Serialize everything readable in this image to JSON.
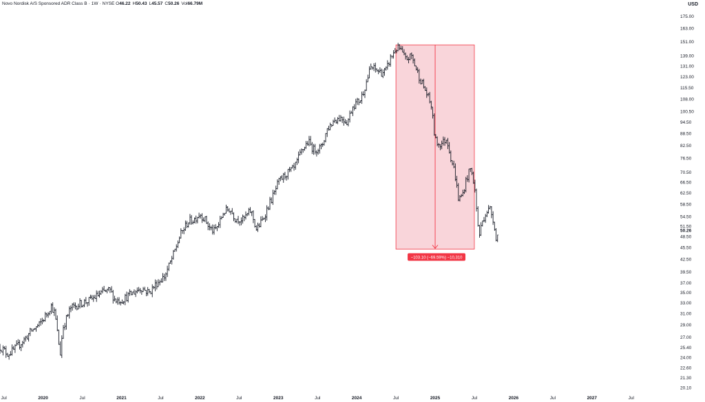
{
  "header": {
    "title": "Novo Nordisk A/S Sponsored ADR Class B",
    "interval": "1W",
    "exchange": "NYSE",
    "open_label": "O",
    "open": "46.22",
    "high_label": "H",
    "high": "50.43",
    "low_label": "L",
    "low": "45.57",
    "close_label": "C",
    "close": "50.26",
    "vol_label": "Vol",
    "vol": "66.79M"
  },
  "currency": "USD",
  "colors": {
    "candle": "#131722",
    "measure_fill": "#f7c7cd",
    "measure_stroke": "#f23645",
    "measure_label_bg": "#f23645",
    "measure_label_text": "#ffffff",
    "background": "#ffffff"
  },
  "measure": {
    "label": "−103.10 (−69.59%) −10,310",
    "from_price": 148.2,
    "to_price": 45.1,
    "from_date": 2024.5,
    "to_date": 2025.5,
    "arrow_date": 2025.0
  },
  "chart_data": {
    "type": "candlestick",
    "price_scale": "log",
    "ylim": [
      19.5,
      182
    ],
    "xlim": [
      2019.45,
      2027.95
    ],
    "y_ticks": [
      "175.00",
      "163.00",
      "151.00",
      "139.00",
      "131.00",
      "123.00",
      "115.50",
      "108.00",
      "100.50",
      "94.50",
      "88.50",
      "82.50",
      "76.50",
      "70.50",
      "66.50",
      "62.50",
      "58.50",
      "54.50",
      "51.50",
      "48.50",
      "45.50",
      "42.50",
      "39.50",
      "37.00",
      "35.00",
      "33.00",
      "31.00",
      "29.00",
      "27.00",
      "25.40",
      "24.00",
      "22.60",
      "21.30",
      "20.10"
    ],
    "last_price_label": "50.26",
    "last_price": 50.26,
    "x_ticks": [
      {
        "label": "Jul",
        "t": 2019.5,
        "year": false
      },
      {
        "label": "2020",
        "t": 2020.0,
        "year": true
      },
      {
        "label": "Jul",
        "t": 2020.5,
        "year": false
      },
      {
        "label": "2021",
        "t": 2021.0,
        "year": true
      },
      {
        "label": "Jul",
        "t": 2021.5,
        "year": false
      },
      {
        "label": "2022",
        "t": 2022.0,
        "year": true
      },
      {
        "label": "Jul",
        "t": 2022.5,
        "year": false
      },
      {
        "label": "2023",
        "t": 2023.0,
        "year": true
      },
      {
        "label": "Jul",
        "t": 2023.5,
        "year": false
      },
      {
        "label": "2024",
        "t": 2024.0,
        "year": true
      },
      {
        "label": "Jul",
        "t": 2024.5,
        "year": false
      },
      {
        "label": "2025",
        "t": 2025.0,
        "year": true
      },
      {
        "label": "Jul",
        "t": 2025.5,
        "year": false
      },
      {
        "label": "2026",
        "t": 2026.0,
        "year": true
      },
      {
        "label": "Jul",
        "t": 2026.5,
        "year": false
      },
      {
        "label": "2027",
        "t": 2027.0,
        "year": true
      },
      {
        "label": "Jul",
        "t": 2027.5,
        "year": false
      }
    ],
    "price_path": [
      [
        2019.45,
        25.5
      ],
      [
        2019.55,
        24.5
      ],
      [
        2019.62,
        25.0
      ],
      [
        2019.75,
        26.5
      ],
      [
        2019.85,
        28.0
      ],
      [
        2019.95,
        29.0
      ],
      [
        2020.05,
        31.0
      ],
      [
        2020.1,
        32.5
      ],
      [
        2020.15,
        31.0
      ],
      [
        2020.2,
        26.0
      ],
      [
        2020.22,
        24.5
      ],
      [
        2020.25,
        28.5
      ],
      [
        2020.35,
        32.0
      ],
      [
        2020.5,
        33.0
      ],
      [
        2020.6,
        33.5
      ],
      [
        2020.75,
        35.0
      ],
      [
        2020.85,
        35.5
      ],
      [
        2020.92,
        33.5
      ],
      [
        2021.0,
        33.5
      ],
      [
        2021.1,
        34.5
      ],
      [
        2021.25,
        36.0
      ],
      [
        2021.35,
        35.0
      ],
      [
        2021.45,
        37.0
      ],
      [
        2021.55,
        38.5
      ],
      [
        2021.65,
        43.0
      ],
      [
        2021.75,
        49.0
      ],
      [
        2021.85,
        53.0
      ],
      [
        2021.92,
        53.5
      ],
      [
        2022.0,
        55.5
      ],
      [
        2022.08,
        53.0
      ],
      [
        2022.12,
        51.0
      ],
      [
        2022.18,
        50.0
      ],
      [
        2022.25,
        52.5
      ],
      [
        2022.3,
        56.0
      ],
      [
        2022.38,
        57.0
      ],
      [
        2022.45,
        54.0
      ],
      [
        2022.55,
        53.5
      ],
      [
        2022.65,
        56.5
      ],
      [
        2022.72,
        50.5
      ],
      [
        2022.8,
        53.5
      ],
      [
        2022.88,
        58.5
      ],
      [
        2022.95,
        62.5
      ],
      [
        2023.0,
        66.5
      ],
      [
        2023.1,
        70.0
      ],
      [
        2023.2,
        72.0
      ],
      [
        2023.3,
        80.0
      ],
      [
        2023.38,
        84.5
      ],
      [
        2023.45,
        80.5
      ],
      [
        2023.55,
        81.5
      ],
      [
        2023.62,
        90.5
      ],
      [
        2023.72,
        96.0
      ],
      [
        2023.8,
        97.0
      ],
      [
        2023.88,
        94.5
      ],
      [
        2023.95,
        104.0
      ],
      [
        2024.05,
        108.0
      ],
      [
        2024.1,
        115.5
      ],
      [
        2024.18,
        130.0
      ],
      [
        2024.25,
        128.0
      ],
      [
        2024.32,
        126.0
      ],
      [
        2024.38,
        128.0
      ],
      [
        2024.42,
        136.0
      ],
      [
        2024.5,
        145.0
      ],
      [
        2024.55,
        145.0
      ],
      [
        2024.62,
        136.0
      ],
      [
        2024.7,
        139.0
      ],
      [
        2024.75,
        130.0
      ],
      [
        2024.82,
        120.0
      ],
      [
        2024.88,
        113.0
      ],
      [
        2024.95,
        104.0
      ],
      [
        2025.0,
        85.0
      ],
      [
        2025.05,
        83.0
      ],
      [
        2025.1,
        84.0
      ],
      [
        2025.15,
        86.0
      ],
      [
        2025.2,
        77.0
      ],
      [
        2025.25,
        70.5
      ],
      [
        2025.3,
        60.0
      ],
      [
        2025.35,
        62.0
      ],
      [
        2025.4,
        68.0
      ],
      [
        2025.45,
        72.0
      ],
      [
        2025.5,
        66.0
      ],
      [
        2025.53,
        56.0
      ],
      [
        2025.56,
        48.5
      ],
      [
        2025.6,
        53.0
      ],
      [
        2025.65,
        56.0
      ],
      [
        2025.7,
        57.0
      ],
      [
        2025.75,
        53.0
      ],
      [
        2025.78,
        47.0
      ],
      [
        2025.81,
        50.26
      ]
    ]
  }
}
